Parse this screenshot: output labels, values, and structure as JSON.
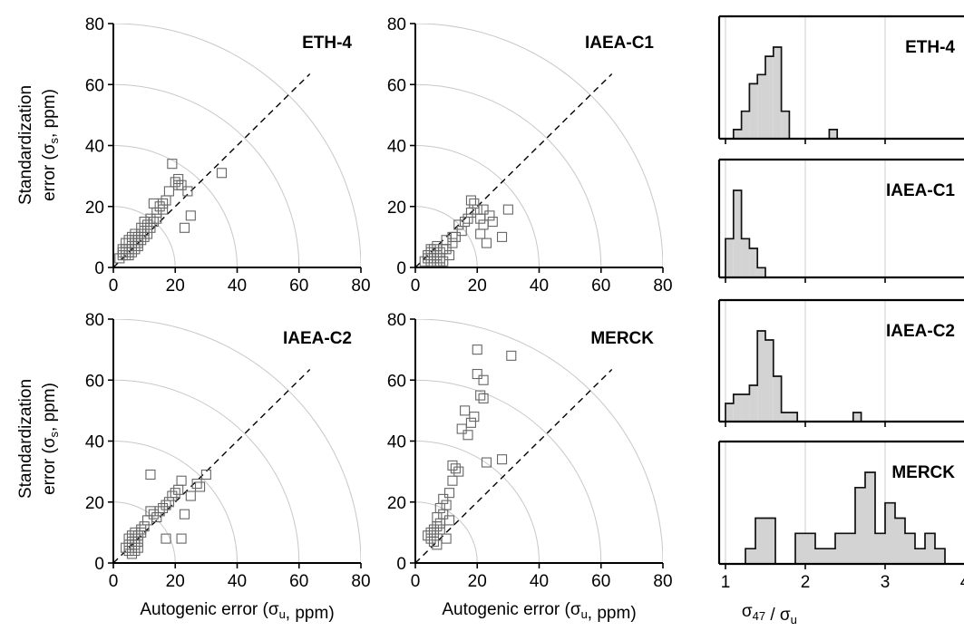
{
  "chart_data": [
    {
      "type": "scatter",
      "title": "ETH-4",
      "xlabel": "",
      "ylabel_lines": [
        "Standardization",
        "error (σ",
        "s",
        ", ppm)"
      ],
      "xlim": [
        0,
        80
      ],
      "ylim": [
        0,
        80
      ],
      "xticks": [
        "0",
        "20",
        "40",
        "60",
        "80"
      ],
      "yticks": [
        "0",
        "20",
        "40",
        "60",
        "80"
      ],
      "arcs": [
        20,
        40,
        60,
        80
      ],
      "diagonal": true,
      "points": [
        [
          2,
          3
        ],
        [
          3,
          4
        ],
        [
          3,
          5
        ],
        [
          4,
          4
        ],
        [
          4,
          6
        ],
        [
          5,
          5
        ],
        [
          5,
          6
        ],
        [
          6,
          7
        ],
        [
          6,
          8
        ],
        [
          7,
          6
        ],
        [
          7,
          9
        ],
        [
          8,
          8
        ],
        [
          8,
          10
        ],
        [
          9,
          9
        ],
        [
          9,
          11
        ],
        [
          10,
          10
        ],
        [
          10,
          12
        ],
        [
          11,
          11
        ],
        [
          11,
          14
        ],
        [
          12,
          16
        ],
        [
          13,
          15
        ],
        [
          14,
          18
        ],
        [
          15,
          20
        ],
        [
          16,
          21
        ],
        [
          17,
          22
        ],
        [
          18,
          25
        ],
        [
          19,
          34
        ],
        [
          20,
          28
        ],
        [
          21,
          27
        ],
        [
          21,
          29
        ],
        [
          22,
          27
        ],
        [
          23,
          13
        ],
        [
          24,
          25
        ],
        [
          25,
          17
        ],
        [
          35,
          31
        ],
        [
          6,
          10
        ],
        [
          7,
          11
        ],
        [
          8,
          7
        ],
        [
          9,
          13
        ],
        [
          5,
          9
        ],
        [
          4,
          8
        ],
        [
          12,
          13
        ],
        [
          14,
          16
        ],
        [
          16,
          19
        ],
        [
          3,
          6
        ],
        [
          5,
          4
        ],
        [
          6,
          5
        ],
        [
          8,
          9
        ],
        [
          10,
          15
        ],
        [
          13,
          21
        ]
      ]
    },
    {
      "type": "scatter",
      "title": "IAEA-C1",
      "xlabel": "",
      "xlim": [
        0,
        80
      ],
      "ylim": [
        0,
        80
      ],
      "xticks": [
        "0",
        "20",
        "40",
        "60",
        "80"
      ],
      "yticks": [
        "0",
        "20",
        "40",
        "60",
        "80"
      ],
      "arcs": [
        20,
        40,
        60,
        80
      ],
      "diagonal": true,
      "points": [
        [
          3,
          2
        ],
        [
          4,
          3
        ],
        [
          4,
          4
        ],
        [
          5,
          2
        ],
        [
          5,
          5
        ],
        [
          6,
          3
        ],
        [
          6,
          6
        ],
        [
          7,
          4
        ],
        [
          7,
          1
        ],
        [
          8,
          3
        ],
        [
          8,
          5
        ],
        [
          9,
          2
        ],
        [
          10,
          6
        ],
        [
          10,
          9
        ],
        [
          11,
          4
        ],
        [
          12,
          8
        ],
        [
          13,
          10
        ],
        [
          14,
          14
        ],
        [
          15,
          12
        ],
        [
          16,
          15
        ],
        [
          17,
          16
        ],
        [
          18,
          18
        ],
        [
          18,
          22
        ],
        [
          19,
          21
        ],
        [
          20,
          19
        ],
        [
          21,
          11
        ],
        [
          21,
          16
        ],
        [
          22,
          14
        ],
        [
          22,
          19
        ],
        [
          23,
          8
        ],
        [
          24,
          17
        ],
        [
          25,
          15
        ],
        [
          28,
          10
        ],
        [
          30,
          19
        ],
        [
          5,
          6
        ],
        [
          6,
          4
        ],
        [
          7,
          7
        ],
        [
          8,
          2
        ],
        [
          9,
          6
        ],
        [
          12,
          10
        ]
      ]
    },
    {
      "type": "scatter",
      "title": "IAEA-C2",
      "xlabel": "Autogenic error (σu, ppm)",
      "ylabel_lines": [
        "Standardization",
        "error (σ",
        "s",
        ", ppm)"
      ],
      "xlim": [
        0,
        80
      ],
      "ylim": [
        0,
        80
      ],
      "xticks": [
        "0",
        "20",
        "40",
        "60",
        "80"
      ],
      "yticks": [
        "0",
        "20",
        "40",
        "60",
        "80"
      ],
      "arcs": [
        20,
        40,
        60,
        80
      ],
      "diagonal": true,
      "points": [
        [
          4,
          5
        ],
        [
          5,
          4
        ],
        [
          5,
          6
        ],
        [
          6,
          3
        ],
        [
          6,
          5
        ],
        [
          6,
          7
        ],
        [
          7,
          4
        ],
        [
          7,
          6
        ],
        [
          7,
          8
        ],
        [
          8,
          5
        ],
        [
          8,
          9
        ],
        [
          9,
          10
        ],
        [
          10,
          12
        ],
        [
          11,
          14
        ],
        [
          12,
          17
        ],
        [
          12,
          29
        ],
        [
          13,
          16
        ],
        [
          14,
          15
        ],
        [
          15,
          17
        ],
        [
          16,
          18
        ],
        [
          17,
          19
        ],
        [
          17,
          8
        ],
        [
          18,
          20
        ],
        [
          19,
          22
        ],
        [
          20,
          23
        ],
        [
          21,
          24
        ],
        [
          22,
          8
        ],
        [
          22,
          27
        ],
        [
          23,
          16
        ],
        [
          25,
          22
        ],
        [
          27,
          26
        ],
        [
          28,
          25
        ],
        [
          30,
          29
        ],
        [
          6,
          9
        ],
        [
          8,
          7
        ],
        [
          5,
          8
        ],
        [
          7,
          10
        ],
        [
          9,
          11
        ]
      ]
    },
    {
      "type": "scatter",
      "title": "MERCK",
      "xlabel": "Autogenic error (σu, ppm)",
      "xlim": [
        0,
        80
      ],
      "ylim": [
        0,
        80
      ],
      "xticks": [
        "0",
        "20",
        "40",
        "60",
        "80"
      ],
      "yticks": [
        "0",
        "20",
        "40",
        "60",
        "80"
      ],
      "arcs": [
        20,
        40,
        60,
        80
      ],
      "diagonal": true,
      "points": [
        [
          4,
          9
        ],
        [
          5,
          10
        ],
        [
          5,
          8
        ],
        [
          6,
          11
        ],
        [
          6,
          7
        ],
        [
          7,
          12
        ],
        [
          7,
          15
        ],
        [
          8,
          13
        ],
        [
          8,
          18
        ],
        [
          9,
          16
        ],
        [
          9,
          21
        ],
        [
          10,
          19
        ],
        [
          10,
          8
        ],
        [
          11,
          23
        ],
        [
          11,
          14
        ],
        [
          12,
          32
        ],
        [
          12,
          27
        ],
        [
          13,
          31
        ],
        [
          14,
          30
        ],
        [
          15,
          44
        ],
        [
          16,
          50
        ],
        [
          17,
          42
        ],
        [
          18,
          46
        ],
        [
          19,
          48
        ],
        [
          20,
          70
        ],
        [
          20,
          62
        ],
        [
          21,
          55
        ],
        [
          22,
          60
        ],
        [
          22,
          54
        ],
        [
          23,
          33
        ],
        [
          28,
          34
        ],
        [
          31,
          68
        ],
        [
          6,
          10
        ],
        [
          7,
          6
        ],
        [
          8,
          11
        ]
      ]
    },
    {
      "type": "bar",
      "title": "ETH-4",
      "xlim": [
        1,
        4
      ],
      "bin_start": 1.1,
      "bin_width": 0.1,
      "counts": [
        1,
        3,
        6,
        7,
        9,
        10,
        3,
        0,
        0,
        0,
        0,
        0,
        1
      ]
    },
    {
      "type": "bar",
      "title": "IAEA-C1",
      "xlim": [
        1,
        4
      ],
      "bin_start": 1.0,
      "bin_width": 0.1,
      "counts": [
        4,
        9,
        4,
        3,
        1,
        0
      ]
    },
    {
      "type": "bar",
      "title": "IAEA-C2",
      "xlim": [
        1,
        4
      ],
      "bin_start": 1.0,
      "bin_width": 0.1,
      "counts": [
        2,
        3,
        3,
        4,
        10,
        9,
        5,
        1,
        1,
        0,
        0,
        0,
        0,
        0,
        0,
        0,
        1
      ]
    },
    {
      "type": "bar",
      "title": "MERCK",
      "xlabel": "σ47 / σu",
      "xlim": [
        1,
        4
      ],
      "xticks": [
        "1",
        "2",
        "3",
        "4"
      ],
      "bin_start": 1.25,
      "bin_width": 0.125,
      "counts": [
        1,
        3,
        3,
        0,
        0,
        2,
        2,
        1,
        1,
        2,
        2,
        5,
        6,
        2,
        4,
        3,
        2,
        1,
        2,
        1,
        0,
        0,
        1
      ]
    }
  ]
}
